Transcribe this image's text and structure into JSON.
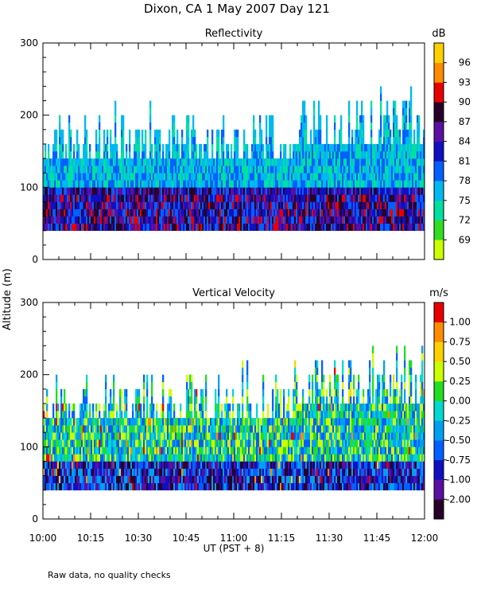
{
  "title": "Dixon, CA   1 May 2007   Day 121",
  "shared": {
    "ylabel": "Altitude (m)",
    "xlabel": "UT   (PST + 8)",
    "x_tick_labels": [
      "10:00",
      "10:15",
      "10:30",
      "10:45",
      "11:00",
      "11:15",
      "11:30",
      "11:45",
      "12:00"
    ],
    "footnote": "Raw data, no quality checks"
  },
  "chart_data": [
    {
      "type": "heatmap",
      "title": "Reflectivity",
      "xlabel": "UT   (PST + 8)",
      "ylabel": "Altitude (m)",
      "x_range_hours": [
        10.0,
        12.0
      ],
      "ylim": [
        0,
        300
      ],
      "y_ticks": [
        0,
        100,
        200,
        300
      ],
      "data_altitude_range_m": [
        40,
        240
      ],
      "colorbar": {
        "unit": "dB",
        "levels": [
          69,
          72,
          75,
          78,
          81,
          84,
          87,
          90,
          93,
          96
        ],
        "colors": [
          "#ccff00",
          "#33dd22",
          "#00e0a0",
          "#00b8f0",
          "#0060ff",
          "#1010c0",
          "#5a0fa0",
          "#280028",
          "#e60000",
          "#ff8c00",
          "#ffd000"
        ]
      }
    },
    {
      "type": "heatmap",
      "title": "Vertical Velocity",
      "xlabel": "UT   (PST + 8)",
      "ylabel": "Altitude (m)",
      "x_range_hours": [
        10.0,
        12.0
      ],
      "ylim": [
        0,
        300
      ],
      "y_ticks": [
        0,
        100,
        200,
        300
      ],
      "data_altitude_range_m": [
        40,
        240
      ],
      "colorbar": {
        "unit": "m/s",
        "levels": [
          -2.0,
          -1.0,
          -0.75,
          -0.5,
          -0.25,
          0.0,
          0.25,
          0.5,
          0.75,
          1.0
        ],
        "level_labels": [
          "-2.00",
          "-1.00",
          "-0.75",
          "-0.50",
          "-0.25",
          "0.00",
          "0.25",
          "0.50",
          "0.75",
          "1.00"
        ],
        "colors": [
          "#280028",
          "#5a0fa0",
          "#1010c0",
          "#0060ff",
          "#00a0f0",
          "#00d8d0",
          "#22dd22",
          "#ccff00",
          "#ffd000",
          "#ff8c00",
          "#e60000"
        ]
      }
    }
  ]
}
